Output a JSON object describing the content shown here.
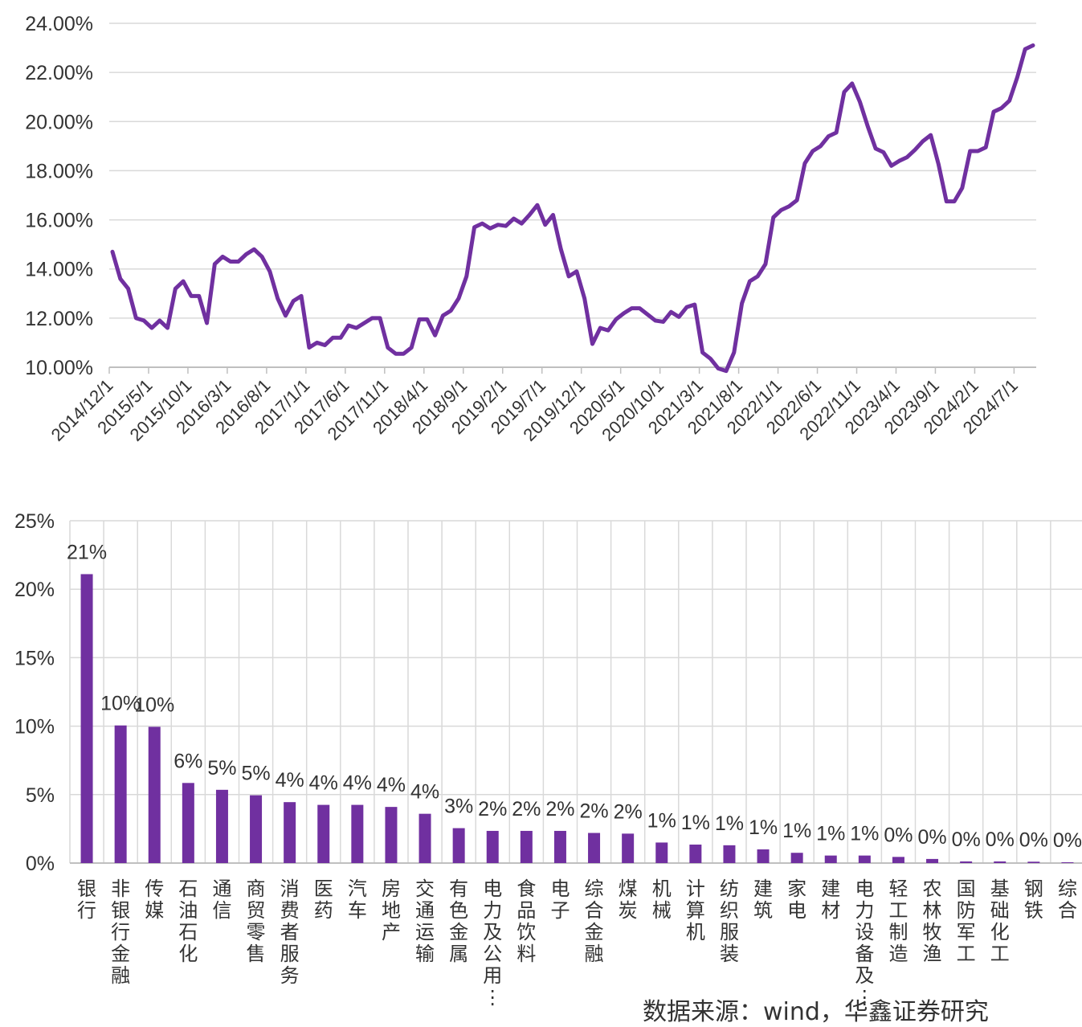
{
  "chart_data": [
    {
      "type": "line",
      "title": "",
      "xlabel": "",
      "ylabel": "",
      "ylim": [
        10,
        24
      ],
      "y_ticks": [
        "10.00%",
        "12.00%",
        "14.00%",
        "16.00%",
        "18.00%",
        "20.00%",
        "22.00%",
        "24.00%"
      ],
      "x_ticks": [
        "2014/12/1",
        "2015/5/1",
        "2015/10/1",
        "2016/3/1",
        "2016/8/1",
        "2017/1/1",
        "2017/6/1",
        "2017/11/1",
        "2018/4/1",
        "2018/9/1",
        "2019/2/1",
        "2019/7/1",
        "2019/12/1",
        "2020/5/1",
        "2020/10/1",
        "2021/3/1",
        "2021/8/1",
        "2022/1/1",
        "2022/6/1",
        "2022/11/1",
        "2023/4/1",
        "2023/9/1",
        "2024/2/1",
        "2024/7/1"
      ],
      "grid": true,
      "color": "#7030A0",
      "series": [
        {
          "values": [
            14.7,
            13.6,
            13.2,
            12.0,
            11.9,
            11.6,
            11.9,
            11.6,
            13.2,
            13.5,
            12.9,
            12.9,
            11.8,
            14.2,
            14.5,
            14.3,
            14.3,
            14.6,
            14.8,
            14.5,
            13.9,
            12.8,
            12.1,
            12.7,
            12.9,
            10.8,
            11.0,
            10.9,
            11.2,
            11.2,
            11.7,
            11.6,
            11.8,
            12.0,
            12.0,
            10.8,
            10.55,
            10.55,
            10.8,
            11.95,
            11.95,
            11.3,
            12.1,
            12.3,
            12.8,
            13.7,
            15.7,
            15.85,
            15.65,
            15.8,
            15.75,
            16.05,
            15.85,
            16.2,
            16.6,
            15.8,
            16.2,
            14.8,
            13.7,
            13.9,
            12.8,
            10.95,
            11.6,
            11.5,
            11.95,
            12.2,
            12.4,
            12.4,
            12.15,
            11.9,
            11.85,
            12.25,
            12.05,
            12.45,
            12.55,
            10.6,
            10.35,
            9.95,
            9.85,
            10.6,
            12.6,
            13.5,
            13.7,
            14.2,
            16.1,
            16.4,
            16.55,
            16.8,
            18.3,
            18.8,
            19.0,
            19.4,
            19.55,
            21.2,
            21.55,
            20.8,
            19.8,
            18.9,
            18.75,
            18.2,
            18.4,
            18.55,
            18.85,
            19.2,
            19.45,
            18.25,
            16.75,
            16.75,
            17.3,
            18.8,
            18.8,
            18.95,
            20.4,
            20.55,
            20.85,
            21.8,
            22.95,
            23.1
          ]
        }
      ]
    },
    {
      "type": "bar",
      "title": "",
      "xlabel": "",
      "ylabel": "",
      "ylim": [
        0,
        25
      ],
      "y_ticks": [
        "0%",
        "5%",
        "10%",
        "15%",
        "20%",
        "25%"
      ],
      "grid": true,
      "color": "#7030A0",
      "categories": [
        "银行",
        "非银行金融",
        "传媒",
        "石油石化",
        "通信",
        "商贸零售",
        "消费者服务",
        "医药",
        "汽车",
        "房地产",
        "交通运输",
        "有色金属",
        "电力及公用…",
        "食品饮料",
        "电子",
        "综合金融",
        "煤炭",
        "机械",
        "计算机",
        "纺织服装",
        "建筑",
        "家电",
        "建材",
        "电力设备及…",
        "轻工制造",
        "农林牧渔",
        "国防军工",
        "基础化工",
        "钢铁",
        "综合"
      ],
      "values": [
        21.1,
        10.05,
        9.95,
        5.85,
        5.35,
        4.95,
        4.45,
        4.25,
        4.25,
        4.1,
        3.6,
        2.55,
        2.35,
        2.35,
        2.35,
        2.2,
        2.15,
        1.5,
        1.35,
        1.3,
        1.0,
        0.75,
        0.55,
        0.55,
        0.45,
        0.3,
        0.12,
        0.12,
        0.1,
        0.05
      ],
      "data_labels": [
        "21%",
        "10%",
        "10%",
        "6%",
        "5%",
        "5%",
        "4%",
        "4%",
        "4%",
        "4%",
        "4%",
        "3%",
        "2%",
        "2%",
        "2%",
        "2%",
        "2%",
        "1%",
        "1%",
        "1%",
        "1%",
        "1%",
        "1%",
        "1%",
        "0%",
        "0%",
        "0%",
        "0%",
        "0%",
        "0%"
      ]
    }
  ],
  "source_note": "数据来源：wind，华鑫证券研究"
}
